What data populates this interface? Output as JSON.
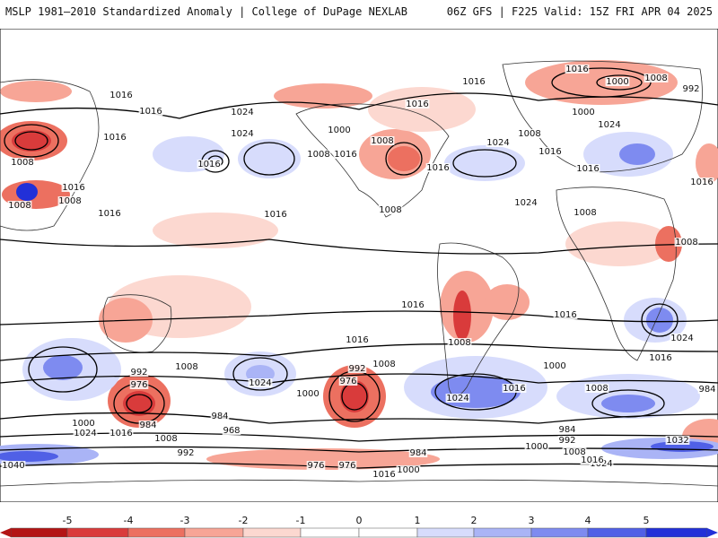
{
  "header": {
    "left": "MSLP 1981–2010 Standardized Anomaly | College of DuPage NEXLAB",
    "right": "06Z GFS | F225 Valid: 15Z FRI APR 04 2025"
  },
  "colors": {
    "neg5": "#b31515",
    "neg4": "#d93b3b",
    "neg3": "#ec7060",
    "neg2": "#f7a596",
    "neg1": "#fcd8d0",
    "pos1": "#d7dcfc",
    "pos2": "#aab4f6",
    "pos3": "#7e8bf0",
    "pos4": "#5060e6",
    "pos5": "#2230d8",
    "contour": "#000000",
    "coast": "#333333"
  },
  "legend": {
    "ticks": [
      "-5",
      "-4",
      "-3",
      "-2",
      "-1",
      "0",
      "1",
      "2",
      "3",
      "4",
      "5"
    ]
  },
  "contour_labels": [
    {
      "id": "c1",
      "text": "1016"
    },
    {
      "id": "c2",
      "text": "1016"
    },
    {
      "id": "c3",
      "text": "1016"
    },
    {
      "id": "c4",
      "text": "1008"
    },
    {
      "id": "c5",
      "text": "1024"
    },
    {
      "id": "c6",
      "text": "1024"
    },
    {
      "id": "c7",
      "text": "1016"
    },
    {
      "id": "c8",
      "text": "1008"
    },
    {
      "id": "c9",
      "text": "1000"
    },
    {
      "id": "c10",
      "text": "1016"
    },
    {
      "id": "c11",
      "text": "1008"
    },
    {
      "id": "c12",
      "text": "1016"
    },
    {
      "id": "c13",
      "text": "1016"
    },
    {
      "id": "c14",
      "text": "1016"
    },
    {
      "id": "c15",
      "text": "1008"
    },
    {
      "id": "c16",
      "text": "1008"
    },
    {
      "id": "c17",
      "text": "1016"
    },
    {
      "id": "c18",
      "text": "1016"
    },
    {
      "id": "c19",
      "text": "1008"
    },
    {
      "id": "c20",
      "text": "1016"
    },
    {
      "id": "c21",
      "text": "1000"
    },
    {
      "id": "c22",
      "text": "1008"
    },
    {
      "id": "c23",
      "text": "992"
    },
    {
      "id": "c24",
      "text": "1000"
    },
    {
      "id": "c25",
      "text": "1024"
    },
    {
      "id": "c26",
      "text": "1008"
    },
    {
      "id": "c27",
      "text": "1016"
    },
    {
      "id": "c28",
      "text": "1024"
    },
    {
      "id": "c29",
      "text": "1024"
    },
    {
      "id": "c30",
      "text": "1016"
    },
    {
      "id": "c31",
      "text": "1008"
    },
    {
      "id": "c32",
      "text": "1016"
    },
    {
      "id": "c33",
      "text": "1008"
    },
    {
      "id": "c34",
      "text": "1016"
    },
    {
      "id": "c35",
      "text": "1016"
    },
    {
      "id": "c36",
      "text": "1024"
    },
    {
      "id": "c37",
      "text": "1008"
    },
    {
      "id": "c38",
      "text": "1016"
    },
    {
      "id": "c39",
      "text": "992"
    },
    {
      "id": "c40",
      "text": "976"
    },
    {
      "id": "c41",
      "text": "1008"
    },
    {
      "id": "c42",
      "text": "1024"
    },
    {
      "id": "c43",
      "text": "1000"
    },
    {
      "id": "c44",
      "text": "1016"
    },
    {
      "id": "c45",
      "text": "992"
    },
    {
      "id": "c46",
      "text": "976"
    },
    {
      "id": "c47",
      "text": "1008"
    },
    {
      "id": "c48",
      "text": "1024"
    },
    {
      "id": "c49",
      "text": "1016"
    },
    {
      "id": "c50",
      "text": "1000"
    },
    {
      "id": "c51",
      "text": "1008"
    },
    {
      "id": "c52",
      "text": "984"
    },
    {
      "id": "c53",
      "text": "1000"
    },
    {
      "id": "c54",
      "text": "1024"
    },
    {
      "id": "c55",
      "text": "1016"
    },
    {
      "id": "c56",
      "text": "984"
    },
    {
      "id": "c57",
      "text": "1008"
    },
    {
      "id": "c58",
      "text": "984"
    },
    {
      "id": "c59",
      "text": "968"
    },
    {
      "id": "c60",
      "text": "992"
    },
    {
      "id": "c61",
      "text": "976"
    },
    {
      "id": "c62",
      "text": "976"
    },
    {
      "id": "c63",
      "text": "1000"
    },
    {
      "id": "c64",
      "text": "1016"
    },
    {
      "id": "c65",
      "text": "984"
    },
    {
      "id": "c66",
      "text": "1000"
    },
    {
      "id": "c67",
      "text": "992"
    },
    {
      "id": "c68",
      "text": "1008"
    },
    {
      "id": "c69",
      "text": "1016"
    },
    {
      "id": "c70",
      "text": "1024"
    },
    {
      "id": "c71",
      "text": "1032"
    },
    {
      "id": "c72",
      "text": "984"
    },
    {
      "id": "c73",
      "text": "1040"
    },
    {
      "id": "c74",
      "text": "1016"
    }
  ]
}
